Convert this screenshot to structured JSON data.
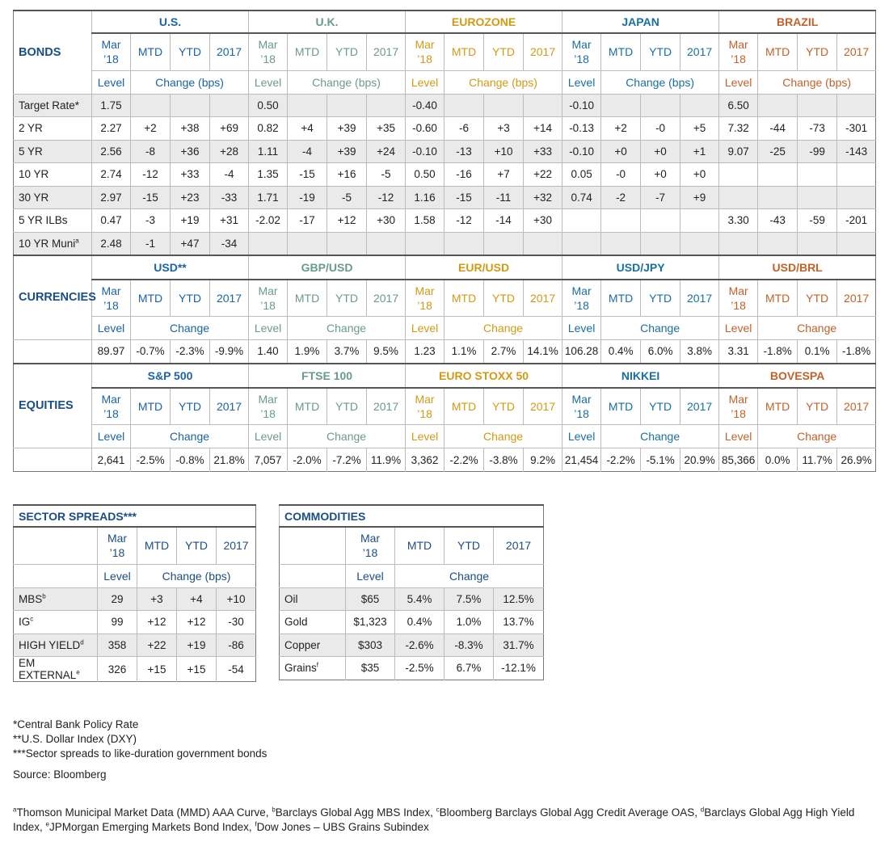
{
  "bonds": {
    "title": "BONDS",
    "groups": [
      "U.S.",
      "U.K.",
      "EUROZONE",
      "JAPAN",
      "BRAZIL"
    ],
    "period_mar": "Mar",
    "period_18": "’18",
    "mtd": "MTD",
    "ytd": "YTD",
    "y2017": "2017",
    "level": "Level",
    "change": "Change (bps)",
    "rows": [
      {
        "label": "Target Rate*",
        "sup": "",
        "cells": [
          "1.75",
          "",
          "",
          "",
          "0.50",
          "",
          "",
          "",
          "-0.40",
          "",
          "",
          "",
          "-0.10",
          "",
          "",
          "",
          "6.50",
          "",
          "",
          ""
        ]
      },
      {
        "label": "2 YR",
        "sup": "",
        "cells": [
          "2.27",
          "+2",
          "+38",
          "+69",
          "0.82",
          "+4",
          "+39",
          "+35",
          "-0.60",
          "-6",
          "+3",
          "+14",
          "-0.13",
          "+2",
          "-0",
          "+5",
          "7.32",
          "-44",
          "-73",
          "-301"
        ]
      },
      {
        "label": "5 YR",
        "sup": "",
        "cells": [
          "2.56",
          "-8",
          "+36",
          "+28",
          "1.11",
          "-4",
          "+39",
          "+24",
          "-0.10",
          "-13",
          "+10",
          "+33",
          "-0.10",
          "+0",
          "+0",
          "+1",
          "9.07",
          "-25",
          "-99",
          "-143"
        ]
      },
      {
        "label": "10 YR",
        "sup": "",
        "cells": [
          "2.74",
          "-12",
          "+33",
          "-4",
          "1.35",
          "-15",
          "+16",
          "-5",
          "0.50",
          "-16",
          "+7",
          "+22",
          "0.05",
          "-0",
          "+0",
          "+0",
          "",
          "",
          "",
          ""
        ]
      },
      {
        "label": "30 YR",
        "sup": "",
        "cells": [
          "2.97",
          "-15",
          "+23",
          "-33",
          "1.71",
          "-19",
          "-5",
          "-12",
          "1.16",
          "-15",
          "-11",
          "+32",
          "0.74",
          "-2",
          "-7",
          "+9",
          "",
          "",
          "",
          ""
        ]
      },
      {
        "label": "5 YR ILBs",
        "sup": "",
        "cells": [
          "0.47",
          "-3",
          "+19",
          "+31",
          "-2.02",
          "-17",
          "+12",
          "+30",
          "1.58",
          "-12",
          "-14",
          "+30",
          "",
          "",
          "",
          "",
          "3.30",
          "-43",
          "-59",
          "-201"
        ]
      },
      {
        "label": "10 YR Muni",
        "sup": "a",
        "cells": [
          "2.48",
          "-1",
          "+47",
          "-34",
          "",
          "",
          "",
          "",
          "",
          "",
          "",
          "",
          "",
          "",
          "",
          "",
          "",
          "",
          "",
          ""
        ]
      }
    ]
  },
  "currencies": {
    "title": "CURRENCIES",
    "groups": [
      "USD**",
      "GBP/USD",
      "EUR/USD",
      "USD/JPY",
      "USD/BRL"
    ],
    "change": "Change",
    "cells": [
      "89.97",
      "-0.7%",
      "-2.3%",
      "-9.9%",
      "1.40",
      "1.9%",
      "3.7%",
      "9.5%",
      "1.23",
      "1.1%",
      "2.7%",
      "14.1%",
      "106.28",
      "0.4%",
      "6.0%",
      "3.8%",
      "3.31",
      "-1.8%",
      "0.1%",
      "-1.8%"
    ]
  },
  "equities": {
    "title": "EQUITIES",
    "groups": [
      "S&P 500",
      "FTSE 100",
      "EURO STOXX 50",
      "NIKKEI",
      "BOVESPA"
    ],
    "change": "Change",
    "cells": [
      "2,641",
      "-2.5%",
      "-0.8%",
      "21.8%",
      "7,057",
      "-2.0%",
      "-7.2%",
      "11.9%",
      "3,362",
      "-2.2%",
      "-3.8%",
      "9.2%",
      "21,454",
      "-2.2%",
      "-5.1%",
      "20.9%",
      "85,366",
      "0.0%",
      "11.7%",
      "26.9%"
    ]
  },
  "spreads": {
    "title": "SECTOR SPREADS***",
    "change": "Change (bps)",
    "rows": [
      {
        "label": "MBS",
        "sup": "b",
        "cells": [
          "29",
          "+3",
          "+4",
          "+10"
        ]
      },
      {
        "label": "IG",
        "sup": "c",
        "cells": [
          "99",
          "+12",
          "+12",
          "-30"
        ]
      },
      {
        "label": "HIGH YIELD",
        "sup": "d",
        "cells": [
          "358",
          "+22",
          "+19",
          "-86"
        ]
      },
      {
        "label": "EM EXTERNAL",
        "sup": "e",
        "cells": [
          "326",
          "+15",
          "+15",
          "-54"
        ]
      }
    ]
  },
  "commodities": {
    "title": "COMMODITIES",
    "change": "Change",
    "rows": [
      {
        "label": "Oil",
        "sup": "",
        "cells": [
          "$65",
          "5.4%",
          "7.5%",
          "12.5%"
        ]
      },
      {
        "label": "Gold",
        "sup": "",
        "cells": [
          "$1,323",
          "0.4%",
          "1.0%",
          "13.7%"
        ]
      },
      {
        "label": "Copper",
        "sup": "",
        "cells": [
          "$303",
          "-2.6%",
          "-8.3%",
          "31.7%"
        ]
      },
      {
        "label": "Grains",
        "sup": "f",
        "cells": [
          "$35",
          "-2.5%",
          "6.7%",
          "-12.1%"
        ]
      }
    ]
  },
  "notes": [
    "*Central Bank Policy Rate",
    "**U.S. Dollar Index (DXY)",
    "***Sector spreads to like-duration government bonds"
  ],
  "source": "Source: Bloomberg",
  "footnote": [
    {
      "sup": "a",
      "text": "Thomson Municipal Market Data (MMD) AAA Curve, "
    },
    {
      "sup": "b",
      "text": "Barclays Global Agg MBS Index, "
    },
    {
      "sup": "c",
      "text": "Bloomberg Barclays Global Agg Credit Average OAS, "
    },
    {
      "sup": "d",
      "text": "Barclays Global Agg High Yield Index, "
    },
    {
      "sup": "e",
      "text": "JPMorgan Emerging Markets Bond Index, "
    },
    {
      "sup": "f",
      "text": "Dow Jones – UBS Grains Subindex"
    }
  ],
  "colors": {
    "us": "#1b63a6",
    "uk": "#6a9a8e",
    "eurozone": "#d29a14",
    "japan": "#1a6fa0",
    "brazil": "#c0622a",
    "title": "#1a4e84"
  }
}
